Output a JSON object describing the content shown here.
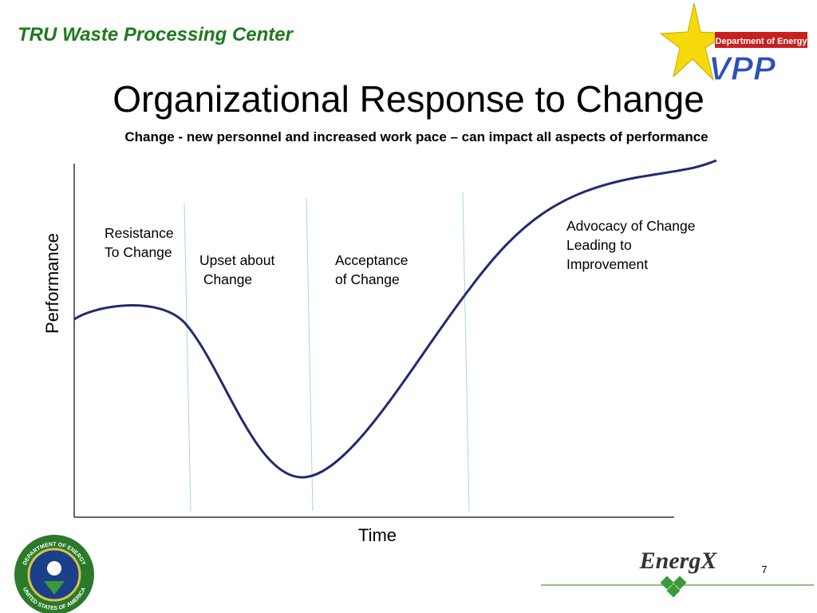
{
  "header": {
    "organization": "TRU Waste Processing Center"
  },
  "title": "Organizational Response to Change",
  "subtitle": "Change - new personnel and increased work pace – can impact all aspects of performance",
  "axes": {
    "y_label": "Performance",
    "x_label": "Time"
  },
  "phases": [
    {
      "lines": [
        "Resistance",
        "To Change"
      ]
    },
    {
      "lines": [
        "Upset about",
        " Change"
      ]
    },
    {
      "lines": [
        "Acceptance",
        "of Change"
      ]
    },
    {
      "lines": [
        "Advocacy of Change",
        "Leading to",
        "Improvement"
      ]
    }
  ],
  "logos": {
    "vpp_banner": "Department of Energy",
    "vpp": "VPP",
    "energx": "EnergX",
    "seal_top": "DEPARTMENT OF ENERGY",
    "seal_bottom": "UNITED STATES OF AMERICA"
  },
  "page_number": "7"
}
